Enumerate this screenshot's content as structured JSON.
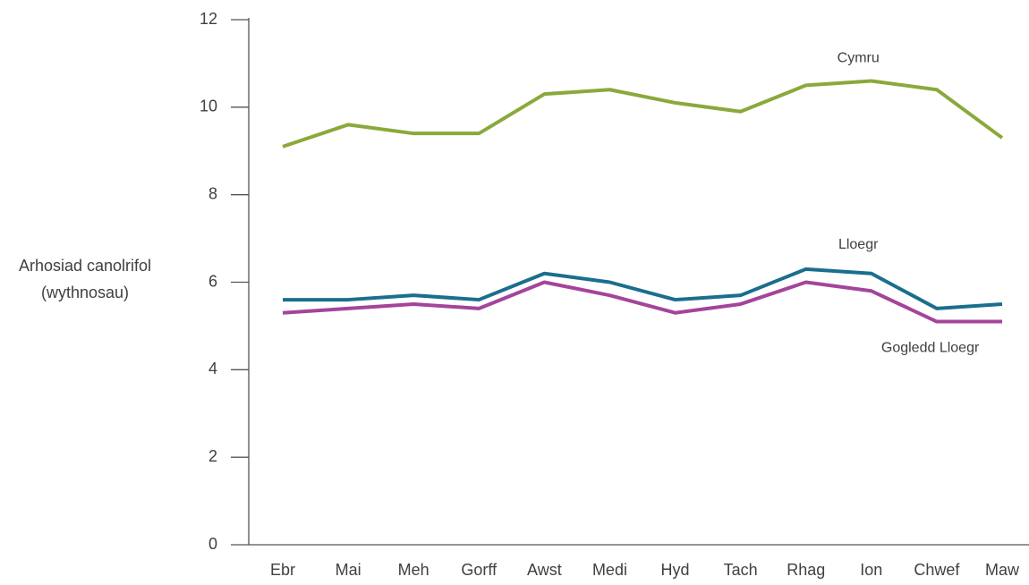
{
  "chart_data": {
    "type": "line",
    "ylabel": [
      "Arhosiad canolrifol",
      "(wythnosau)"
    ],
    "categories": [
      "Ebr",
      "Mai",
      "Meh",
      "Gorff",
      "Awst",
      "Medi",
      "Hyd",
      "Tach",
      "Rhag",
      "Ion",
      "Chwef",
      "Maw"
    ],
    "series": [
      {
        "name": "Cymru",
        "color": "#8aa93b",
        "values": [
          9.1,
          9.6,
          9.4,
          9.4,
          10.3,
          10.4,
          10.1,
          9.9,
          10.5,
          10.6,
          10.4,
          9.3
        ]
      },
      {
        "name": "Lloegr",
        "color": "#1a6e8e",
        "values": [
          5.6,
          5.6,
          5.7,
          5.6,
          6.2,
          6.0,
          5.6,
          5.7,
          6.3,
          6.2,
          5.4,
          5.5
        ]
      },
      {
        "name": "Gogledd Lloegr",
        "color": "#a4449a",
        "values": [
          5.3,
          5.4,
          5.5,
          5.4,
          6.0,
          5.7,
          5.3,
          5.5,
          6.0,
          5.8,
          5.1,
          5.1
        ]
      }
    ],
    "ylim": [
      0,
      12
    ],
    "yticks": [
      0,
      2,
      4,
      6,
      8,
      10,
      12
    ],
    "grid": false
  }
}
